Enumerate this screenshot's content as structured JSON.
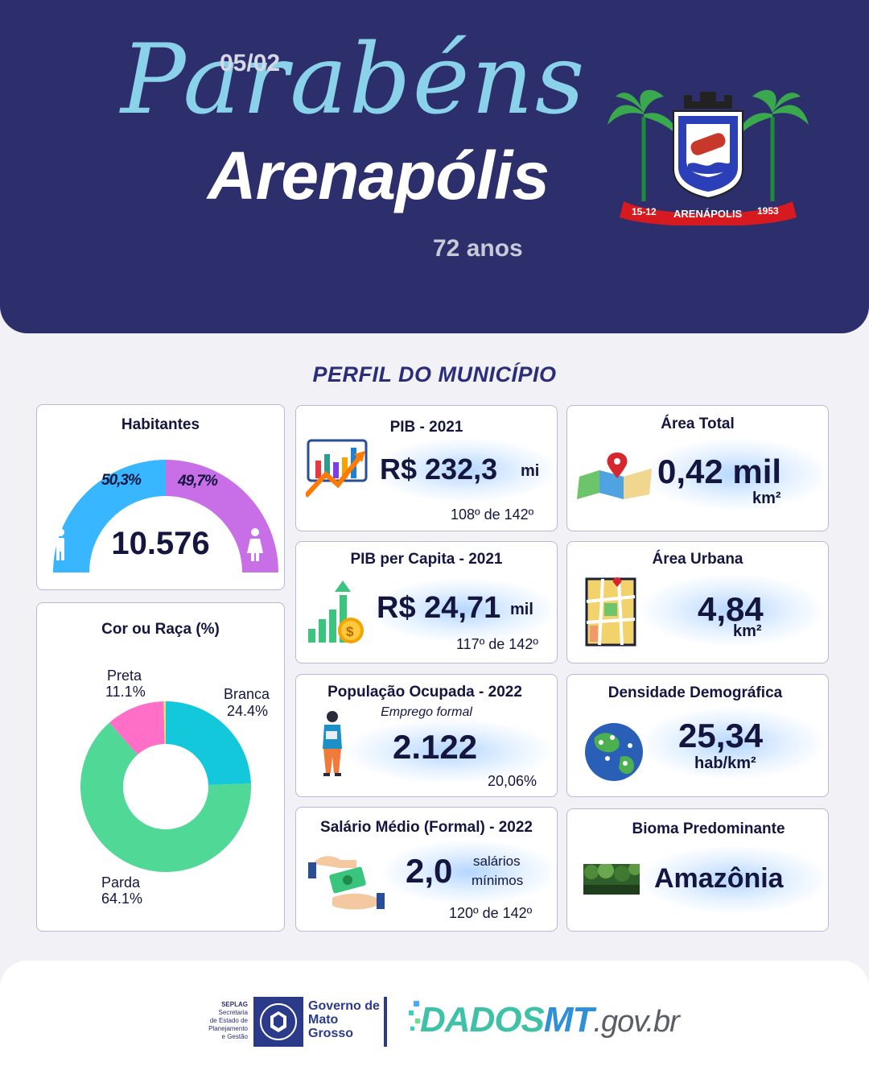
{
  "header": {
    "date": "05/02",
    "greeting": "Parabéns",
    "city": "Arenapólis",
    "age": "72 anos",
    "crest": {
      "left_date": "15-12",
      "name": "ARENÁPOLIS",
      "right_year": "1953"
    }
  },
  "section_title": "PERFIL DO MUNICÍPIO",
  "habitantes": {
    "title": "Habitantes",
    "male_pct": "50,3%",
    "female_pct": "49,7%",
    "total": "10.576",
    "male_share": 0.503,
    "female_share": 0.497,
    "colors": {
      "male": "#38b6ff",
      "female": "#c86ee6"
    }
  },
  "cor_raca": {
    "title": "Cor ou Raça (%)",
    "slices": [
      {
        "name": "Branca",
        "pct": "24.4%",
        "value": 24.4,
        "color": "#14c8dc"
      },
      {
        "name": "Parda",
        "pct": "64.1%",
        "value": 64.1,
        "color": "#4fd896"
      },
      {
        "name": "Preta",
        "pct": "11.1%",
        "value": 11.1,
        "color": "#ff6ec7"
      },
      {
        "name": "",
        "pct": "",
        "value": 0.4,
        "color": "#e8e070"
      }
    ]
  },
  "pib": {
    "title": "PIB - 2021",
    "value": "R$ 232,3",
    "unit": "mi",
    "rank": "108º de 142º"
  },
  "pib_capita": {
    "title": "PIB per Capita - 2021",
    "value": "R$ 24,71",
    "unit": "mil",
    "rank": "117º de 142º"
  },
  "pop_ocupada": {
    "title": "População  Ocupada - 2022",
    "subtitle": "Emprego formal",
    "value": "2.122",
    "pct": "20,06%"
  },
  "salario": {
    "title": "Salário Médio (Formal) - 2022",
    "value": "2,0",
    "unit_line1": "salários",
    "unit_line2": "mínimos",
    "rank": "120º de 142º"
  },
  "area_total": {
    "title": "Área Total",
    "value": "0,42 mil",
    "unit": "km²"
  },
  "area_urbana": {
    "title": "Área Urbana",
    "value": "4,84",
    "unit": "km²"
  },
  "densidade": {
    "title": "Densidade Demográfica",
    "value": "25,34",
    "unit": "hab/km²"
  },
  "bioma": {
    "title": "Bioma Predominante",
    "value": "Amazônia"
  },
  "footer": {
    "seplag_lines": [
      "SEPLAG",
      "Secretaria",
      "de Estado de",
      "Planejamento",
      "e Gestão"
    ],
    "gov_lines": [
      "Governo de",
      "Mato",
      "Grosso"
    ],
    "dados": "DADOS",
    "mt": "MT",
    "domain": ".gov.br"
  }
}
